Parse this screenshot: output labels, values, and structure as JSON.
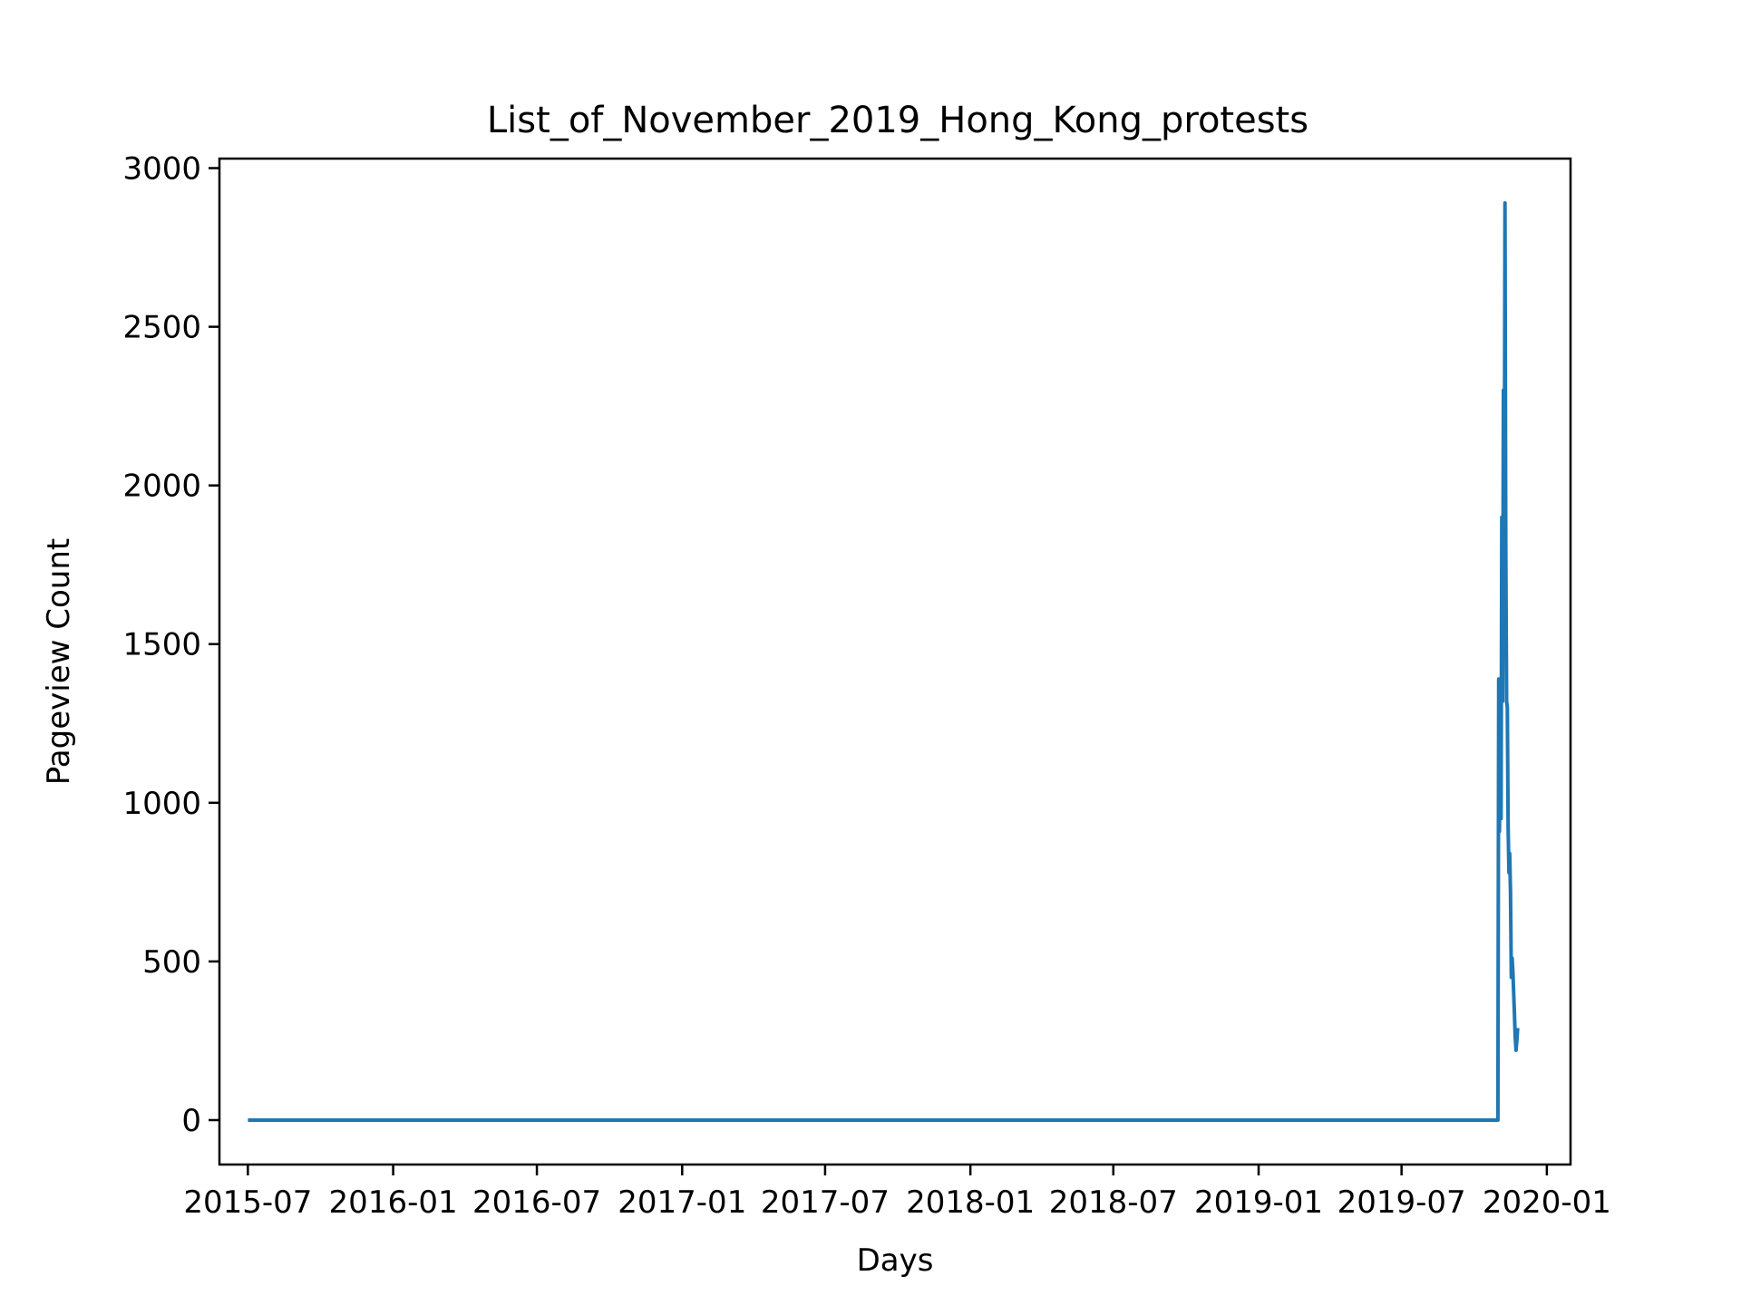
{
  "chart_data": {
    "type": "line",
    "title": "List_of_November_2019_Hong_Kong_protests",
    "xlabel": "Days",
    "ylabel": "Pageview Count",
    "x_axis": "date",
    "xlim": [
      "2015-05-26",
      "2020-01-31"
    ],
    "ylim": [
      -140,
      3030
    ],
    "xticks": [
      "2015-07-01",
      "2016-01-01",
      "2016-07-01",
      "2017-01-01",
      "2017-07-01",
      "2018-01-01",
      "2018-07-01",
      "2019-01-01",
      "2019-07-01",
      "2020-01-01"
    ],
    "xtick_labels": [
      "2015-07",
      "2016-01",
      "2016-07",
      "2017-01",
      "2017-07",
      "2018-01",
      "2018-07",
      "2019-01",
      "2019-07",
      "2020-01"
    ],
    "yticks": [
      0,
      500,
      1000,
      1500,
      2000,
      2500,
      3000
    ],
    "ytick_labels": [
      "0",
      "500",
      "1000",
      "1500",
      "2000",
      "2500",
      "3000"
    ],
    "grid": false,
    "legend": "none",
    "series": [
      {
        "color": "#1f77b4",
        "points": [
          [
            "2015-07-01",
            0
          ],
          [
            "2019-10-31",
            0
          ],
          [
            "2019-11-01",
            1390
          ],
          [
            "2019-11-02",
            910
          ],
          [
            "2019-11-03",
            1380
          ],
          [
            "2019-11-04",
            950
          ],
          [
            "2019-11-05",
            1900
          ],
          [
            "2019-11-06",
            1320
          ],
          [
            "2019-11-07",
            2300
          ],
          [
            "2019-11-08",
            1600
          ],
          [
            "2019-11-09",
            2890
          ],
          [
            "2019-11-10",
            1800
          ],
          [
            "2019-11-11",
            1320
          ],
          [
            "2019-11-12",
            1300
          ],
          [
            "2019-11-13",
            920
          ],
          [
            "2019-11-14",
            780
          ],
          [
            "2019-11-15",
            840
          ],
          [
            "2019-11-16",
            720
          ],
          [
            "2019-11-17",
            450
          ],
          [
            "2019-11-18",
            510
          ],
          [
            "2019-11-19",
            470
          ],
          [
            "2019-11-20",
            400
          ],
          [
            "2019-11-21",
            330
          ],
          [
            "2019-11-22",
            260
          ],
          [
            "2019-11-23",
            220
          ],
          [
            "2019-11-24",
            250
          ],
          [
            "2019-11-25",
            290
          ]
        ]
      }
    ]
  }
}
